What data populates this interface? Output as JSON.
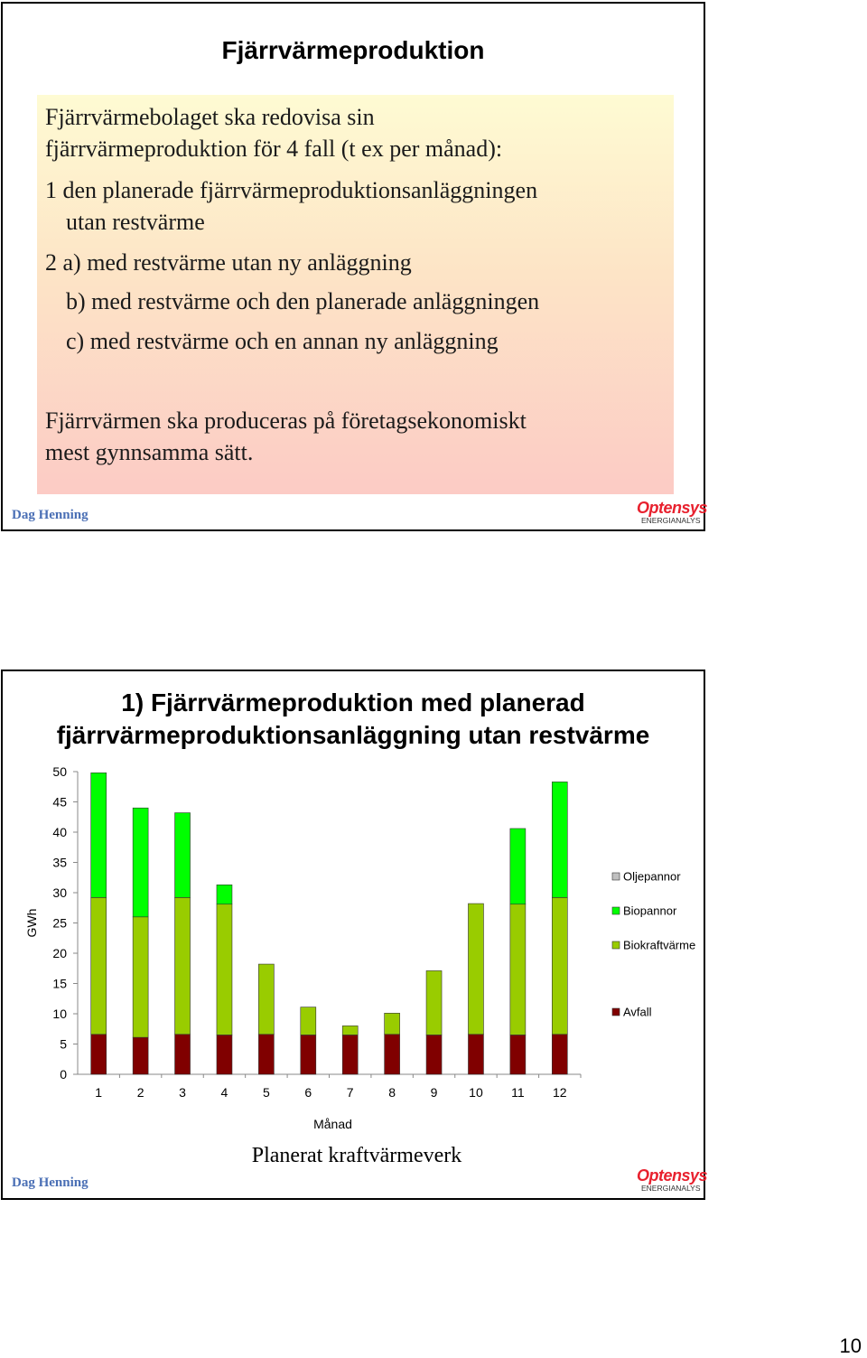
{
  "slide1": {
    "title": "Fjärrvärmeproduktion",
    "lines": [
      "Fjärrvärmebolaget ska redovisa sin",
      "fjärrvärmeproduktion för 4 fall (t ex per månad):",
      "1 den planerade fjärrvärmeproduktionsanläggningen",
      "utan restvärme",
      "2 a) med restvärme utan ny anläggning",
      "b) med restvärme och den planerade anläggningen",
      "c) med restvärme och en annan ny anläggning",
      "Fjärrvärmen ska produceras på företagsekonomiskt",
      "mest gynnsamma sätt."
    ],
    "author": "Dag Henning",
    "logo_main": "Optensys",
    "logo_sub": "ENERGIANALYS"
  },
  "slide2": {
    "title_line1": "1) Fjärrvärmeproduktion med planerad",
    "title_line2": "fjärrvärmeproduktionsanläggning utan restvärme",
    "caption": "Planerat kraftvärmeverk",
    "author": "Dag Henning",
    "logo_main": "Optensys",
    "logo_sub": "ENERGIANALYS"
  },
  "page_number": "10",
  "chart_data": {
    "type": "bar",
    "stacked": true,
    "xlabel": "Månad",
    "ylabel": "GWh",
    "ylim": [
      0,
      50
    ],
    "yticks": [
      0,
      5,
      10,
      15,
      20,
      25,
      30,
      35,
      40,
      45,
      50
    ],
    "categories": [
      "1",
      "2",
      "3",
      "4",
      "5",
      "6",
      "7",
      "8",
      "9",
      "10",
      "11",
      "12"
    ],
    "legend_position": "right",
    "legend_order": [
      "Oljepannor",
      "Biopannor",
      "Biokraftvärme",
      "Avfall"
    ],
    "series": [
      {
        "name": "Avfall",
        "color": "#800000",
        "values": [
          6.6,
          6.1,
          6.6,
          6.5,
          6.6,
          6.5,
          6.5,
          6.6,
          6.5,
          6.6,
          6.5,
          6.6
        ]
      },
      {
        "name": "Biokraftvärme",
        "color": "#99cc00",
        "values": [
          22.6,
          19.9,
          22.6,
          21.6,
          11.6,
          4.6,
          1.5,
          3.5,
          10.6,
          21.6,
          21.6,
          22.6
        ]
      },
      {
        "name": "Biopannor",
        "color": "#00ff00",
        "values": [
          20.6,
          18.0,
          14.0,
          3.2,
          0,
          0,
          0,
          0,
          0,
          0,
          12.5,
          19.1
        ]
      },
      {
        "name": "Oljepannor",
        "color": "#c0c0c0",
        "values": [
          0,
          0,
          0,
          0,
          0,
          0,
          0,
          0,
          0,
          0,
          0,
          0
        ]
      }
    ]
  }
}
